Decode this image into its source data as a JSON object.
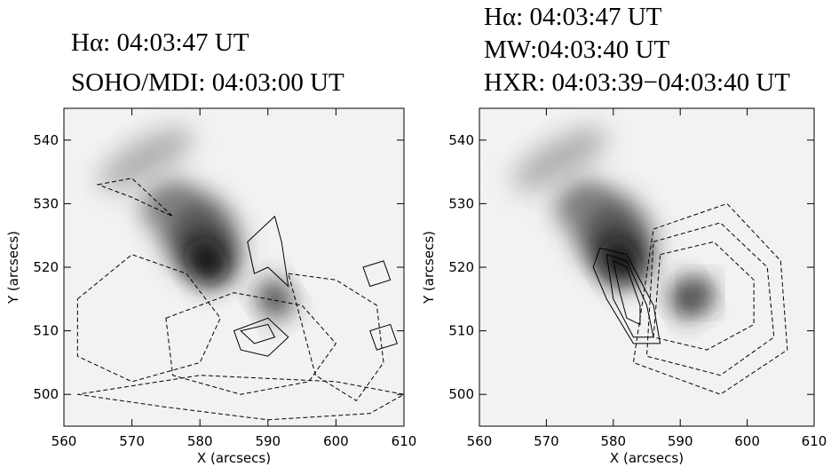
{
  "chart_data": [
    {
      "type": "image",
      "title_lines": [
        "Hα: 04:03:47 UT",
        "SOHO/MDI: 04:03:00 UT"
      ],
      "xlabel": "X (arcsecs)",
      "ylabel": "Y (arcsecs)",
      "xlim": [
        560,
        610
      ],
      "ylim": [
        495,
        545
      ],
      "xticks": [
        560,
        570,
        580,
        590,
        600,
        610
      ],
      "yticks": [
        500,
        510,
        520,
        530,
        540
      ]
    },
    {
      "type": "image",
      "title_lines": [
        "Hα: 04:03:47 UT",
        "MW:04:03:40 UT",
        "HXR: 04:03:39−04:03:40 UT"
      ],
      "xlabel": "X (arcsecs)",
      "ylabel": "Y (arcsecs)",
      "xlim": [
        560,
        610
      ],
      "ylim": [
        495,
        545
      ],
      "xticks": [
        560,
        570,
        580,
        590,
        600,
        610
      ],
      "yticks": [
        500,
        510,
        520,
        530,
        540
      ]
    }
  ]
}
